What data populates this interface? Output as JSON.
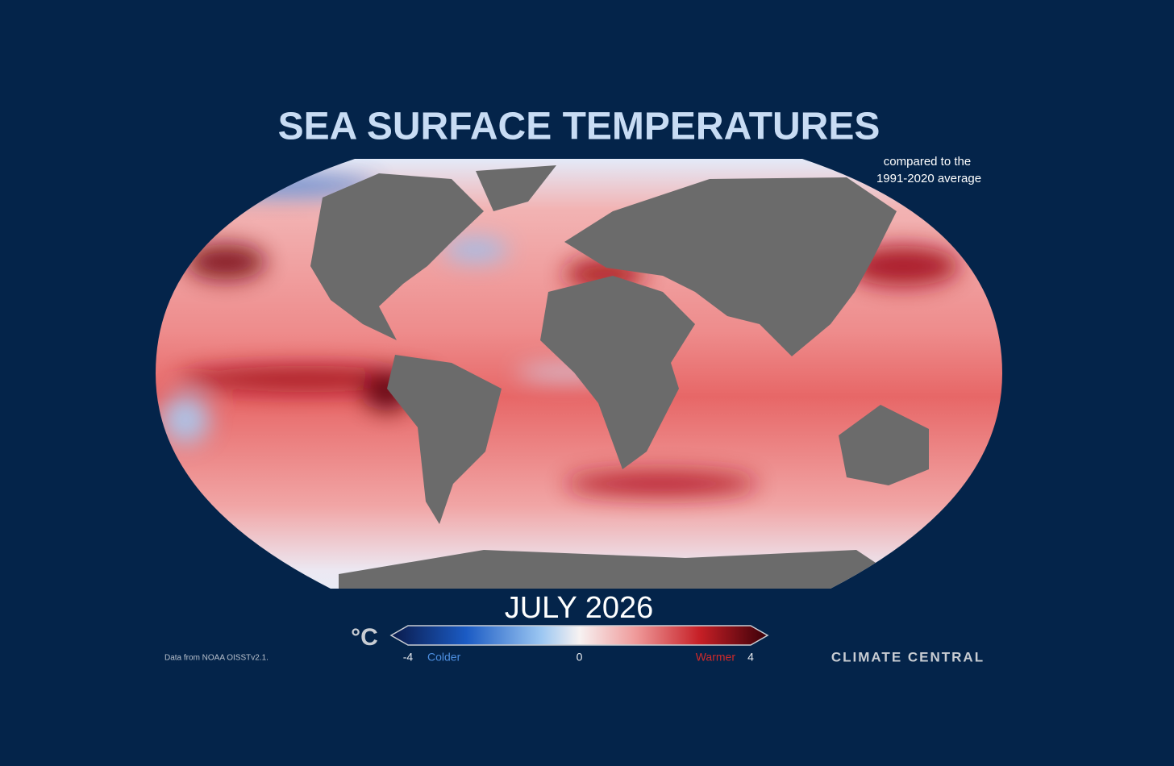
{
  "header": {
    "title": "SEA SURFACE TEMPERATURES",
    "subtitle_lines": [
      "compared to the",
      "1991-2020 average"
    ]
  },
  "map": {
    "period": "JULY 2026"
  },
  "legend": {
    "unit": "°C",
    "ticks": [
      -4,
      0,
      4
    ],
    "colder": "Colder",
    "warmer": "Warmer"
  },
  "footer": {
    "source": "Data from NOAA OISSTv2.1.",
    "brand": "CLIMATE CENTRAL"
  }
}
